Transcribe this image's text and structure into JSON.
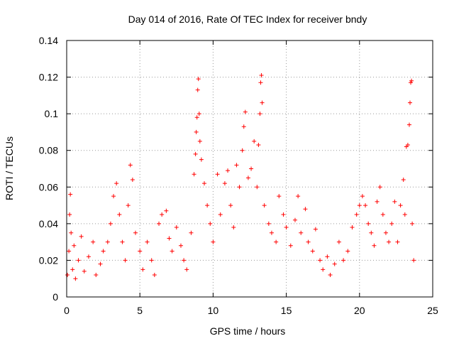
{
  "chart_data": {
    "type": "scatter",
    "title": "Day 014 of 2016, Rate Of TEC Index for receiver bndy",
    "xlabel": "GPS time / hours",
    "ylabel": "ROTI / TECUs",
    "xlim": [
      0,
      25
    ],
    "ylim": [
      0,
      0.14
    ],
    "x_ticks": [
      "0",
      "5",
      "10",
      "15",
      "20",
      "25"
    ],
    "y_ticks": [
      "0",
      "0.02",
      "0.04",
      "0.06",
      "0.08",
      "0.1",
      "0.12",
      "0.14"
    ],
    "grid": true,
    "marker": "+",
    "series": [
      {
        "name": "ROTI",
        "color": "#ff0000",
        "points": [
          [
            0.05,
            0.012
          ],
          [
            0.15,
            0.025
          ],
          [
            0.2,
            0.045
          ],
          [
            0.25,
            0.056
          ],
          [
            0.3,
            0.035
          ],
          [
            0.4,
            0.015
          ],
          [
            0.5,
            0.028
          ],
          [
            0.6,
            0.01
          ],
          [
            0.8,
            0.02
          ],
          [
            1.0,
            0.033
          ],
          [
            1.2,
            0.014
          ],
          [
            1.5,
            0.022
          ],
          [
            1.8,
            0.03
          ],
          [
            2.0,
            0.012
          ],
          [
            2.3,
            0.018
          ],
          [
            2.5,
            0.025
          ],
          [
            2.8,
            0.03
          ],
          [
            3.0,
            0.04
          ],
          [
            3.2,
            0.055
          ],
          [
            3.4,
            0.062
          ],
          [
            3.6,
            0.045
          ],
          [
            3.8,
            0.03
          ],
          [
            4.0,
            0.02
          ],
          [
            4.2,
            0.05
          ],
          [
            4.35,
            0.072
          ],
          [
            4.5,
            0.064
          ],
          [
            4.7,
            0.035
          ],
          [
            5.0,
            0.025
          ],
          [
            5.2,
            0.015
          ],
          [
            5.5,
            0.03
          ],
          [
            5.8,
            0.02
          ],
          [
            6.0,
            0.012
          ],
          [
            6.3,
            0.04
          ],
          [
            6.5,
            0.045
          ],
          [
            6.8,
            0.047
          ],
          [
            7.0,
            0.032
          ],
          [
            7.2,
            0.025
          ],
          [
            7.5,
            0.038
          ],
          [
            7.8,
            0.028
          ],
          [
            8.0,
            0.02
          ],
          [
            8.2,
            0.015
          ],
          [
            8.5,
            0.035
          ],
          [
            8.7,
            0.067
          ],
          [
            8.8,
            0.078
          ],
          [
            8.85,
            0.09
          ],
          [
            8.9,
            0.098
          ],
          [
            8.95,
            0.113
          ],
          [
            9.0,
            0.119
          ],
          [
            9.05,
            0.1
          ],
          [
            9.1,
            0.085
          ],
          [
            9.2,
            0.075
          ],
          [
            9.4,
            0.062
          ],
          [
            9.6,
            0.05
          ],
          [
            9.8,
            0.04
          ],
          [
            10.0,
            0.03
          ],
          [
            10.3,
            0.067
          ],
          [
            10.5,
            0.045
          ],
          [
            10.8,
            0.062
          ],
          [
            11.0,
            0.069
          ],
          [
            11.2,
            0.05
          ],
          [
            11.4,
            0.038
          ],
          [
            11.6,
            0.072
          ],
          [
            11.8,
            0.06
          ],
          [
            12.0,
            0.08
          ],
          [
            12.1,
            0.093
          ],
          [
            12.2,
            0.101
          ],
          [
            12.4,
            0.065
          ],
          [
            12.6,
            0.07
          ],
          [
            12.8,
            0.085
          ],
          [
            13.0,
            0.06
          ],
          [
            13.1,
            0.083
          ],
          [
            13.2,
            0.1
          ],
          [
            13.25,
            0.117
          ],
          [
            13.3,
            0.121
          ],
          [
            13.35,
            0.106
          ],
          [
            13.5,
            0.05
          ],
          [
            13.8,
            0.04
          ],
          [
            14.0,
            0.035
          ],
          [
            14.3,
            0.03
          ],
          [
            14.5,
            0.055
          ],
          [
            14.8,
            0.045
          ],
          [
            15.0,
            0.038
          ],
          [
            15.3,
            0.028
          ],
          [
            15.6,
            0.042
          ],
          [
            15.8,
            0.055
          ],
          [
            16.0,
            0.035
          ],
          [
            16.3,
            0.048
          ],
          [
            16.5,
            0.03
          ],
          [
            16.8,
            0.025
          ],
          [
            17.0,
            0.037
          ],
          [
            17.3,
            0.02
          ],
          [
            17.5,
            0.015
          ],
          [
            17.8,
            0.022
          ],
          [
            18.0,
            0.012
          ],
          [
            18.3,
            0.018
          ],
          [
            18.6,
            0.03
          ],
          [
            18.9,
            0.02
          ],
          [
            19.2,
            0.025
          ],
          [
            19.5,
            0.038
          ],
          [
            19.8,
            0.045
          ],
          [
            20.0,
            0.05
          ],
          [
            20.2,
            0.055
          ],
          [
            20.4,
            0.05
          ],
          [
            20.6,
            0.04
          ],
          [
            20.8,
            0.035
          ],
          [
            21.0,
            0.028
          ],
          [
            21.2,
            0.052
          ],
          [
            21.4,
            0.06
          ],
          [
            21.6,
            0.045
          ],
          [
            21.8,
            0.035
          ],
          [
            22.0,
            0.03
          ],
          [
            22.2,
            0.04
          ],
          [
            22.4,
            0.052
          ],
          [
            22.6,
            0.03
          ],
          [
            22.8,
            0.05
          ],
          [
            23.0,
            0.064
          ],
          [
            23.1,
            0.045
          ],
          [
            23.2,
            0.082
          ],
          [
            23.3,
            0.083
          ],
          [
            23.4,
            0.094
          ],
          [
            23.45,
            0.106
          ],
          [
            23.5,
            0.117
          ],
          [
            23.55,
            0.118
          ],
          [
            23.6,
            0.04
          ],
          [
            23.7,
            0.02
          ]
        ]
      }
    ]
  }
}
